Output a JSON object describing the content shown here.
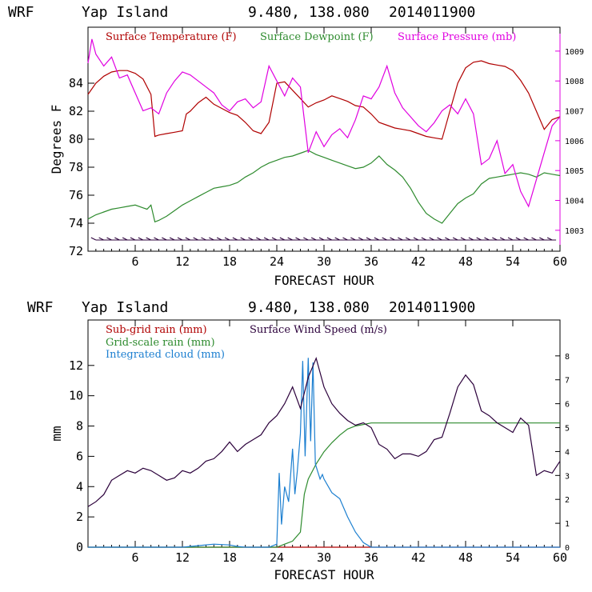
{
  "chart_data": [
    {
      "type": "line",
      "title": {
        "model": "WRF",
        "location": "Yap Island",
        "coords": "9.480, 138.080",
        "run": "2014011900"
      },
      "xlabel": "FORECAST HOUR",
      "ylabel": "Degrees F",
      "xlim": [
        0,
        60
      ],
      "ylim": [
        72,
        88
      ],
      "y2lim": [
        1002.3,
        1009.8
      ],
      "xticks": [
        "6",
        "12",
        "18",
        "24",
        "30",
        "36",
        "42",
        "48",
        "54",
        "60"
      ],
      "yticks": [
        "72",
        "74",
        "76",
        "78",
        "80",
        "82",
        "84"
      ],
      "y2ticks": [
        "1003",
        "1004",
        "1005",
        "1006",
        "1007",
        "1008",
        "1009"
      ],
      "series": [
        {
          "name": "Surface Temperature (F)",
          "color": "#b00000",
          "axis": "left",
          "x": [
            0,
            1,
            2,
            3,
            4,
            5,
            6,
            7,
            8,
            8.5,
            9,
            10,
            11,
            12,
            12.5,
            13,
            14,
            15,
            16,
            17,
            18,
            19,
            20,
            21,
            22,
            23,
            24,
            25,
            26,
            27,
            28,
            29,
            30,
            31,
            32,
            33,
            34,
            35,
            36,
            37,
            38,
            39,
            40,
            41,
            42,
            43,
            44,
            45,
            46,
            47,
            48,
            49,
            50,
            51,
            52,
            53,
            54,
            55,
            56,
            57,
            58,
            59,
            60
          ],
          "values": [
            83.2,
            84.0,
            84.5,
            84.8,
            84.9,
            84.9,
            84.7,
            84.3,
            83.2,
            80.2,
            80.3,
            80.4,
            80.5,
            80.6,
            81.8,
            82.0,
            82.6,
            83.0,
            82.5,
            82.2,
            81.9,
            81.7,
            81.2,
            80.6,
            80.4,
            81.2,
            84.0,
            84.1,
            83.5,
            82.9,
            82.3,
            82.6,
            82.8,
            83.1,
            82.9,
            82.7,
            82.4,
            82.3,
            81.8,
            81.2,
            81.0,
            80.8,
            80.7,
            80.6,
            80.4,
            80.2,
            80.1,
            80.0,
            82.0,
            84.0,
            85.1,
            85.5,
            85.6,
            85.4,
            85.3,
            85.2,
            84.9,
            84.2,
            83.3,
            82.0,
            80.7,
            81.4,
            81.6
          ]
        },
        {
          "name": "Surface Dewpoint (F)",
          "color": "#2e8b2e",
          "axis": "left",
          "x": [
            0,
            1,
            2,
            3,
            4,
            5,
            6,
            7,
            7.5,
            8,
            8.5,
            9,
            10,
            11,
            12,
            13,
            14,
            15,
            16,
            17,
            18,
            19,
            20,
            21,
            22,
            23,
            24,
            25,
            26,
            27,
            28,
            29,
            30,
            31,
            32,
            33,
            34,
            35,
            36,
            37,
            38,
            39,
            40,
            41,
            42,
            43,
            44,
            45,
            46,
            47,
            48,
            49,
            50,
            51,
            52,
            53,
            54,
            55,
            56,
            57,
            58,
            59,
            60
          ],
          "values": [
            74.3,
            74.6,
            74.8,
            75.0,
            75.1,
            75.2,
            75.3,
            75.1,
            75.0,
            75.3,
            74.1,
            74.2,
            74.5,
            74.9,
            75.3,
            75.6,
            75.9,
            76.2,
            76.5,
            76.6,
            76.7,
            76.9,
            77.3,
            77.6,
            78.0,
            78.3,
            78.5,
            78.7,
            78.8,
            79.0,
            79.2,
            78.9,
            78.7,
            78.5,
            78.3,
            78.1,
            77.9,
            78.0,
            78.3,
            78.8,
            78.2,
            77.8,
            77.3,
            76.5,
            75.5,
            74.7,
            74.3,
            74.0,
            74.7,
            75.4,
            75.8,
            76.1,
            76.8,
            77.2,
            77.3,
            77.4,
            77.5,
            77.6,
            77.5,
            77.3,
            77.6,
            77.5,
            77.4
          ]
        },
        {
          "name": "Surface Pressure (mb)",
          "color": "#e000e0",
          "axis": "right",
          "x": [
            0,
            0.5,
            1,
            2,
            3,
            4,
            5,
            6,
            7,
            8,
            9,
            10,
            11,
            12,
            13,
            14,
            15,
            16,
            17,
            18,
            19,
            20,
            21,
            22,
            23,
            24,
            25,
            26,
            27,
            28,
            29,
            30,
            31,
            32,
            33,
            34,
            35,
            36,
            37,
            38,
            39,
            40,
            41,
            42,
            43,
            44,
            45,
            46,
            47,
            48,
            49,
            50,
            51,
            52,
            53,
            54,
            55,
            56,
            57,
            58,
            59,
            60
          ],
          "values": [
            1008.6,
            1009.4,
            1008.9,
            1008.5,
            1008.8,
            1008.1,
            1008.2,
            1007.6,
            1007.0,
            1007.1,
            1006.9,
            1007.6,
            1008.0,
            1008.3,
            1008.2,
            1008.0,
            1007.8,
            1007.6,
            1007.2,
            1007.0,
            1007.3,
            1007.4,
            1007.1,
            1007.3,
            1008.5,
            1008.0,
            1007.5,
            1008.1,
            1007.8,
            1005.6,
            1006.3,
            1005.8,
            1006.2,
            1006.4,
            1006.1,
            1006.7,
            1007.5,
            1007.4,
            1007.8,
            1008.5,
            1007.6,
            1007.1,
            1006.8,
            1006.5,
            1006.3,
            1006.6,
            1007.0,
            1007.2,
            1006.9,
            1007.4,
            1006.9,
            1005.2,
            1005.4,
            1006.0,
            1004.9,
            1005.2,
            1004.3,
            1003.8,
            1004.7,
            1005.6,
            1006.5,
            1006.8
          ]
        }
      ],
      "wind_barbs": {
        "color": "#2b003b",
        "y": 72.8,
        "x": [
          1,
          2,
          3,
          4,
          5,
          6,
          7,
          8,
          9,
          10,
          11,
          12,
          13,
          14,
          15,
          16,
          17,
          18,
          19,
          20,
          21,
          22,
          23,
          24,
          25,
          26,
          27,
          28,
          29,
          30,
          31,
          32,
          33,
          34,
          35,
          36,
          37,
          38,
          39,
          40,
          41,
          42,
          43,
          44,
          45,
          46,
          47,
          48,
          49,
          50,
          51,
          52,
          53,
          54,
          55,
          56,
          57,
          58,
          59
        ]
      }
    },
    {
      "type": "line",
      "title": {
        "model": "WRF",
        "location": "Yap Island",
        "coords": "9.480, 138.080",
        "run": "2014011900"
      },
      "xlabel": "FORECAST HOUR",
      "ylabel": "mm",
      "xlim": [
        0,
        60
      ],
      "ylim": [
        0,
        15
      ],
      "y2lim": [
        0,
        9.5
      ],
      "xticks": [
        "6",
        "12",
        "18",
        "24",
        "30",
        "36",
        "42",
        "48",
        "54",
        "60"
      ],
      "yticks": [
        "0",
        "2",
        "4",
        "6",
        "8",
        "10",
        "12"
      ],
      "y2ticks": [
        "0",
        "1",
        "2",
        "3",
        "4",
        "5",
        "6",
        "7",
        "8"
      ],
      "series": [
        {
          "name": "Sub-grid rain (mm)",
          "color": "#b00000",
          "axis": "left",
          "x": [
            0,
            60
          ],
          "values": [
            0,
            0
          ]
        },
        {
          "name": "Grid-scale rain (mm)",
          "color": "#2e8b2e",
          "axis": "left",
          "x": [
            0,
            24,
            25,
            26,
            27,
            27.5,
            28,
            29,
            30,
            31,
            32,
            33,
            34,
            35,
            36,
            60
          ],
          "values": [
            0,
            0,
            0.2,
            0.4,
            1.0,
            3.5,
            4.5,
            5.5,
            6.3,
            6.9,
            7.4,
            7.8,
            8.0,
            8.1,
            8.2,
            8.2
          ]
        },
        {
          "name": "Integrated cloud (mm)",
          "color": "#1c7fd0",
          "axis": "left",
          "x": [
            0,
            12,
            14,
            16,
            18,
            19,
            20,
            23,
            24,
            24.3,
            24.6,
            25,
            25.5,
            26,
            26.3,
            26.6,
            27,
            27.3,
            27.6,
            28,
            28.3,
            28.6,
            28.9,
            29.2,
            29.5,
            29.8,
            30,
            31,
            32,
            33,
            34,
            35,
            36,
            60
          ],
          "values": [
            0,
            0,
            0.1,
            0.2,
            0.15,
            0.05,
            0,
            0,
            0.2,
            4.9,
            1.5,
            4.0,
            3.0,
            6.5,
            3.5,
            5.0,
            7.5,
            12.3,
            6.0,
            12.5,
            7.0,
            12.2,
            5.5,
            5.0,
            4.5,
            4.8,
            4.5,
            3.6,
            3.2,
            2.0,
            1.0,
            0.3,
            0,
            0
          ]
        },
        {
          "name": "Surface Wind Speed (m/s)",
          "color": "#2b003b",
          "axis": "right",
          "x": [
            0,
            1,
            2,
            3,
            4,
            5,
            6,
            7,
            8,
            9,
            10,
            11,
            12,
            13,
            14,
            15,
            16,
            17,
            18,
            19,
            20,
            21,
            22,
            23,
            24,
            25,
            26,
            27,
            28,
            29,
            30,
            31,
            32,
            33,
            34,
            35,
            36,
            37,
            38,
            39,
            40,
            41,
            42,
            43,
            44,
            45,
            46,
            47,
            48,
            49,
            50,
            51,
            52,
            53,
            54,
            55,
            56,
            57,
            58,
            59,
            60
          ],
          "values": [
            1.7,
            1.9,
            2.2,
            2.8,
            3.0,
            3.2,
            3.1,
            3.3,
            3.2,
            3.0,
            2.8,
            2.9,
            3.2,
            3.1,
            3.3,
            3.6,
            3.7,
            4.0,
            4.4,
            4.0,
            4.3,
            4.5,
            4.7,
            5.2,
            5.5,
            6.0,
            6.7,
            5.8,
            7.1,
            7.9,
            6.7,
            6.0,
            5.6,
            5.3,
            5.1,
            5.2,
            5.0,
            4.3,
            4.1,
            3.7,
            3.9,
            3.9,
            3.8,
            4.0,
            4.5,
            4.6,
            5.6,
            6.7,
            7.2,
            6.8,
            5.7,
            5.5,
            5.2,
            5.0,
            4.8,
            5.4,
            5.1,
            3.0,
            3.2,
            3.1,
            3.6
          ]
        }
      ]
    }
  ]
}
